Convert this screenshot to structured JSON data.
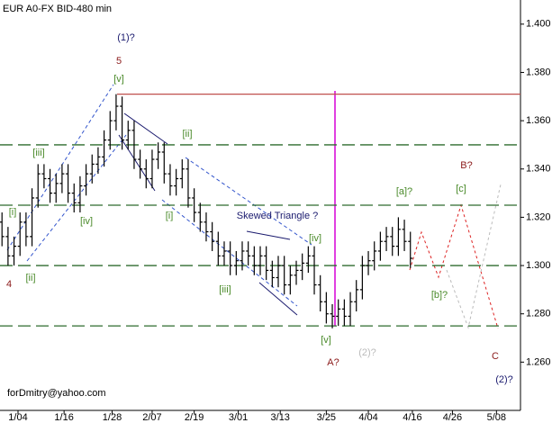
{
  "chart_data": {
    "type": "ohlc",
    "title": "EUR A0-FX BID-480 min",
    "bar_color": "#000000",
    "xlim": [
      0,
      130
    ],
    "xticks": [
      {
        "value": 4.5,
        "label": "1/04"
      },
      {
        "value": 16,
        "label": "1/16"
      },
      {
        "value": 28,
        "label": "1/28"
      },
      {
        "value": 38,
        "label": "2/07"
      },
      {
        "value": 48.5,
        "label": "2/19"
      },
      {
        "value": 59.5,
        "label": "3/01"
      },
      {
        "value": 70,
        "label": "3/13"
      },
      {
        "value": 81.5,
        "label": "3/25"
      },
      {
        "value": 92,
        "label": "4/04"
      },
      {
        "value": 103,
        "label": "4/16"
      },
      {
        "value": 113,
        "label": "4/26"
      },
      {
        "value": 124,
        "label": "5/08"
      }
    ],
    "ylim": [
      1.24,
      1.41
    ],
    "yticks": [
      {
        "value": 1.26,
        "label": "1.260"
      },
      {
        "value": 1.28,
        "label": "1.280"
      },
      {
        "value": 1.3,
        "label": "1.300"
      },
      {
        "value": 1.32,
        "label": "1.320"
      },
      {
        "value": 1.34,
        "label": "1.340"
      },
      {
        "value": 1.36,
        "label": "1.360"
      },
      {
        "value": 1.38,
        "label": "1.380"
      },
      {
        "value": 1.4,
        "label": "1.400"
      }
    ],
    "x": [
      0.5,
      2,
      3.5,
      5,
      6.5,
      8,
      9.5,
      11,
      12.5,
      14,
      15.5,
      17,
      18.5,
      20,
      21.5,
      23,
      24.5,
      26,
      27.5,
      29,
      30.5,
      32,
      33.5,
      35,
      36.5,
      38,
      39.5,
      41,
      42.5,
      44,
      45.5,
      47,
      48.5,
      50,
      51.5,
      53,
      54.5,
      56,
      57.5,
      59,
      60.5,
      62,
      63.5,
      65,
      66.5,
      68,
      69.5,
      71,
      72.5,
      74,
      75.5,
      77,
      78.5,
      80,
      81.5,
      83,
      84.5,
      86,
      87.5,
      89,
      90.5,
      92,
      93.5,
      95,
      96.5,
      98,
      99.5,
      101,
      102.5
    ],
    "open": [
      1.318,
      1.312,
      1.304,
      1.308,
      1.318,
      1.312,
      1.328,
      1.338,
      1.336,
      1.33,
      1.334,
      1.338,
      1.33,
      1.326,
      1.333,
      1.338,
      1.342,
      1.345,
      1.352,
      1.36,
      1.366,
      1.352,
      1.356,
      1.344,
      1.34,
      1.336,
      1.344,
      1.347,
      1.338,
      1.333,
      1.336,
      1.34,
      1.328,
      1.322,
      1.318,
      1.314,
      1.31,
      1.304,
      1.306,
      1.3,
      1.302,
      1.306,
      1.304,
      1.3,
      1.304,
      1.298,
      1.295,
      1.3,
      1.292,
      1.296,
      1.298,
      1.301,
      1.304,
      1.292,
      1.285,
      1.28,
      1.279,
      1.282,
      1.279,
      1.285,
      1.29,
      1.3,
      1.302,
      1.306,
      1.31,
      1.312,
      1.308,
      1.315,
      1.31
    ],
    "high": [
      1.322,
      1.316,
      1.312,
      1.322,
      1.322,
      1.332,
      1.342,
      1.342,
      1.34,
      1.338,
      1.342,
      1.342,
      1.334,
      1.337,
      1.342,
      1.346,
      1.349,
      1.356,
      1.364,
      1.371,
      1.37,
      1.36,
      1.36,
      1.348,
      1.344,
      1.348,
      1.351,
      1.351,
      1.342,
      1.34,
      1.344,
      1.344,
      1.332,
      1.326,
      1.322,
      1.318,
      1.314,
      1.31,
      1.31,
      1.306,
      1.31,
      1.31,
      1.308,
      1.308,
      1.308,
      1.302,
      1.304,
      1.304,
      1.3,
      1.302,
      1.305,
      1.308,
      1.308,
      1.296,
      1.289,
      1.284,
      1.286,
      1.286,
      1.289,
      1.294,
      1.304,
      1.306,
      1.31,
      1.314,
      1.316,
      1.316,
      1.32,
      1.319,
      1.314
    ],
    "low": [
      1.308,
      1.3,
      1.3,
      1.304,
      1.308,
      1.308,
      1.324,
      1.332,
      1.326,
      1.326,
      1.33,
      1.326,
      1.322,
      1.322,
      1.329,
      1.334,
      1.338,
      1.341,
      1.348,
      1.356,
      1.348,
      1.348,
      1.34,
      1.336,
      1.332,
      1.332,
      1.34,
      1.334,
      1.329,
      1.329,
      1.332,
      1.324,
      1.318,
      1.314,
      1.31,
      1.306,
      1.3,
      1.3,
      1.296,
      1.296,
      1.298,
      1.3,
      1.296,
      1.296,
      1.294,
      1.291,
      1.291,
      1.288,
      1.288,
      1.292,
      1.294,
      1.297,
      1.288,
      1.281,
      1.276,
      1.274,
      1.275,
      1.275,
      1.275,
      1.281,
      1.286,
      1.296,
      1.298,
      1.302,
      1.306,
      1.304,
      1.304,
      1.306,
      1.299
    ],
    "close": [
      1.312,
      1.304,
      1.308,
      1.318,
      1.312,
      1.328,
      1.338,
      1.336,
      1.33,
      1.334,
      1.338,
      1.33,
      1.326,
      1.333,
      1.338,
      1.342,
      1.345,
      1.352,
      1.36,
      1.366,
      1.352,
      1.356,
      1.344,
      1.34,
      1.336,
      1.344,
      1.347,
      1.338,
      1.333,
      1.336,
      1.34,
      1.328,
      1.322,
      1.318,
      1.314,
      1.31,
      1.304,
      1.306,
      1.3,
      1.302,
      1.306,
      1.304,
      1.3,
      1.304,
      1.298,
      1.295,
      1.3,
      1.292,
      1.296,
      1.298,
      1.301,
      1.304,
      1.292,
      1.285,
      1.28,
      1.279,
      1.282,
      1.279,
      1.285,
      1.29,
      1.3,
      1.302,
      1.306,
      1.31,
      1.312,
      1.308,
      1.315,
      1.31,
      1.303
    ],
    "hlines": [
      {
        "value": 1.371,
        "color": "#c0504d",
        "style": "solid"
      },
      {
        "value": 1.35,
        "color": "#2e6b2e",
        "style": "dashed"
      },
      {
        "value": 1.325,
        "color": "#2e6b2e",
        "style": "dashed"
      },
      {
        "value": 1.3,
        "color": "#2e6b2e",
        "style": "dashed"
      },
      {
        "value": 1.275,
        "color": "#2e6b2e",
        "style": "dashed"
      }
    ],
    "annotations": [
      {
        "text": "(1)?",
        "color": "#1a1a6e"
      },
      {
        "text": "5",
        "color": "#8b1a1a"
      },
      {
        "text": "[v]",
        "color": "#4a8a2a"
      },
      {
        "text": "[iii]",
        "color": "#4a8a2a"
      },
      {
        "text": "[i]",
        "color": "#4a8a2a"
      },
      {
        "text": "[iv]",
        "color": "#4a8a2a"
      },
      {
        "text": "4",
        "color": "#8b1a1a"
      },
      {
        "text": "[ii]",
        "color": "#4a8a2a"
      },
      {
        "text": "[ii]",
        "color": "#4a8a2a"
      },
      {
        "text": "[i]",
        "color": "#4a8a2a"
      },
      {
        "text": "[iii]",
        "color": "#4a8a2a"
      },
      {
        "text": "Skewed Triangle ?",
        "color": "#1a1a6e"
      },
      {
        "text": "[iv]",
        "color": "#4a8a2a"
      },
      {
        "text": "[v]",
        "color": "#4a8a2a"
      },
      {
        "text": "A?",
        "color": "#8b1a1a"
      },
      {
        "text": "(2)?",
        "color": "#bbbbbb"
      },
      {
        "text": "[a]?",
        "color": "#4a8a2a"
      },
      {
        "text": "[b]?",
        "color": "#4a8a2a"
      },
      {
        "text": "[c]",
        "color": "#4a8a2a"
      },
      {
        "text": "B?",
        "color": "#8b1a1a"
      },
      {
        "text": "C",
        "color": "#8b1a1a"
      },
      {
        "text": "(2)?",
        "color": "#1a1a6e"
      },
      {
        "text": "forDmitry@yahoo.com",
        "color": "#000000"
      }
    ]
  }
}
